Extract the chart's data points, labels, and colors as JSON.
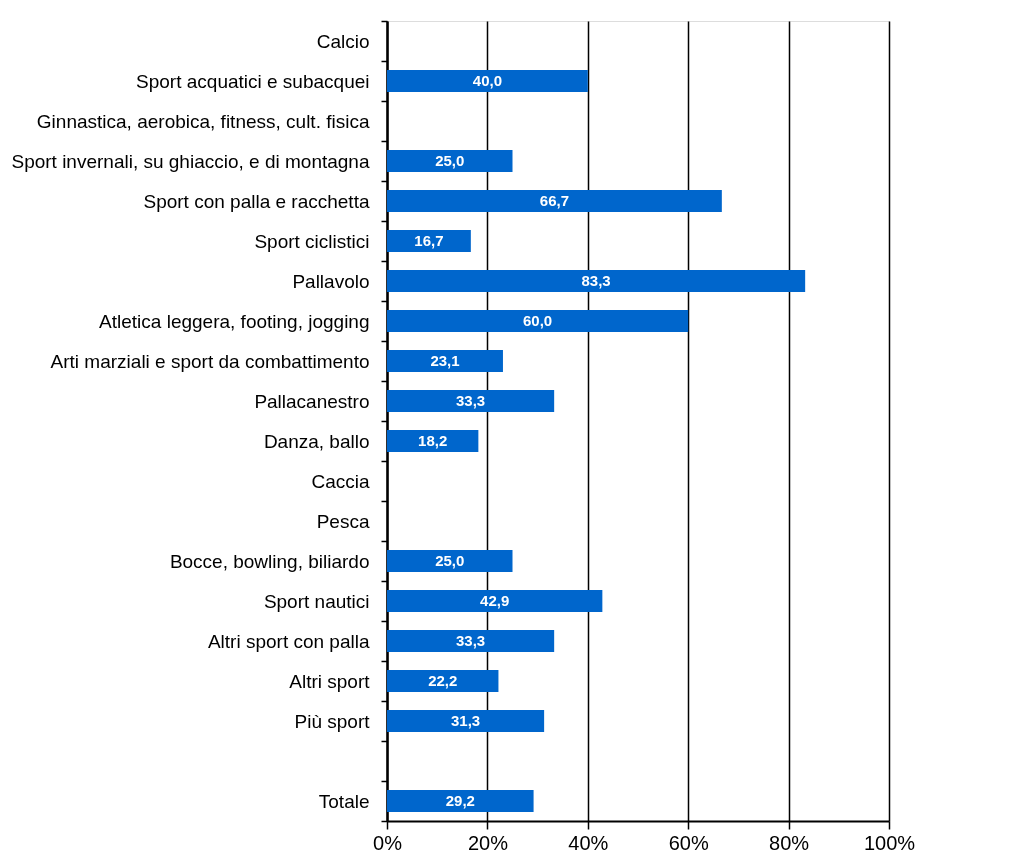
{
  "chart_data": {
    "type": "bar",
    "orientation": "horizontal",
    "categories": [
      "Calcio",
      "Sport acquatici e subacquei",
      "Ginnastica, aerobica, fitness, cult. fisica",
      "Sport invernali, su ghiaccio, e di montagna",
      "Sport con palla e racchetta",
      "Sport ciclistici",
      "Pallavolo",
      "Atletica leggera, footing, jogging",
      "Arti marziali e sport da combattimento",
      "Pallacanestro",
      "Danza, ballo",
      "Caccia",
      "Pesca",
      "Bocce, bowling, biliardo",
      "Sport nautici",
      "Altri sport con palla",
      "Altri sport",
      "Più sport",
      null,
      "Totale"
    ],
    "values": [
      0,
      40.0,
      0,
      25.0,
      66.7,
      16.7,
      83.3,
      60.0,
      23.1,
      33.3,
      18.2,
      0,
      0,
      25.0,
      42.9,
      33.3,
      22.2,
      31.3,
      null,
      29.2
    ],
    "value_labels": [
      null,
      "40,0",
      null,
      "25,0",
      "66,7",
      "16,7",
      "83,3",
      "60,0",
      "23,1",
      "33,3",
      "18,2",
      null,
      null,
      "25,0",
      "42,9",
      "33,3",
      "22,2",
      "31,3",
      null,
      "29,2"
    ],
    "color": "#0066cc",
    "xlim": [
      0,
      100
    ],
    "xticks": [
      {
        "value": 0,
        "label": "0%"
      },
      {
        "value": 20,
        "label": "20%"
      },
      {
        "value": 40,
        "label": "40%"
      },
      {
        "value": 60,
        "label": "60%"
      },
      {
        "value": 80,
        "label": "80%"
      },
      {
        "value": 100,
        "label": "100%"
      }
    ],
    "grid": "x"
  }
}
